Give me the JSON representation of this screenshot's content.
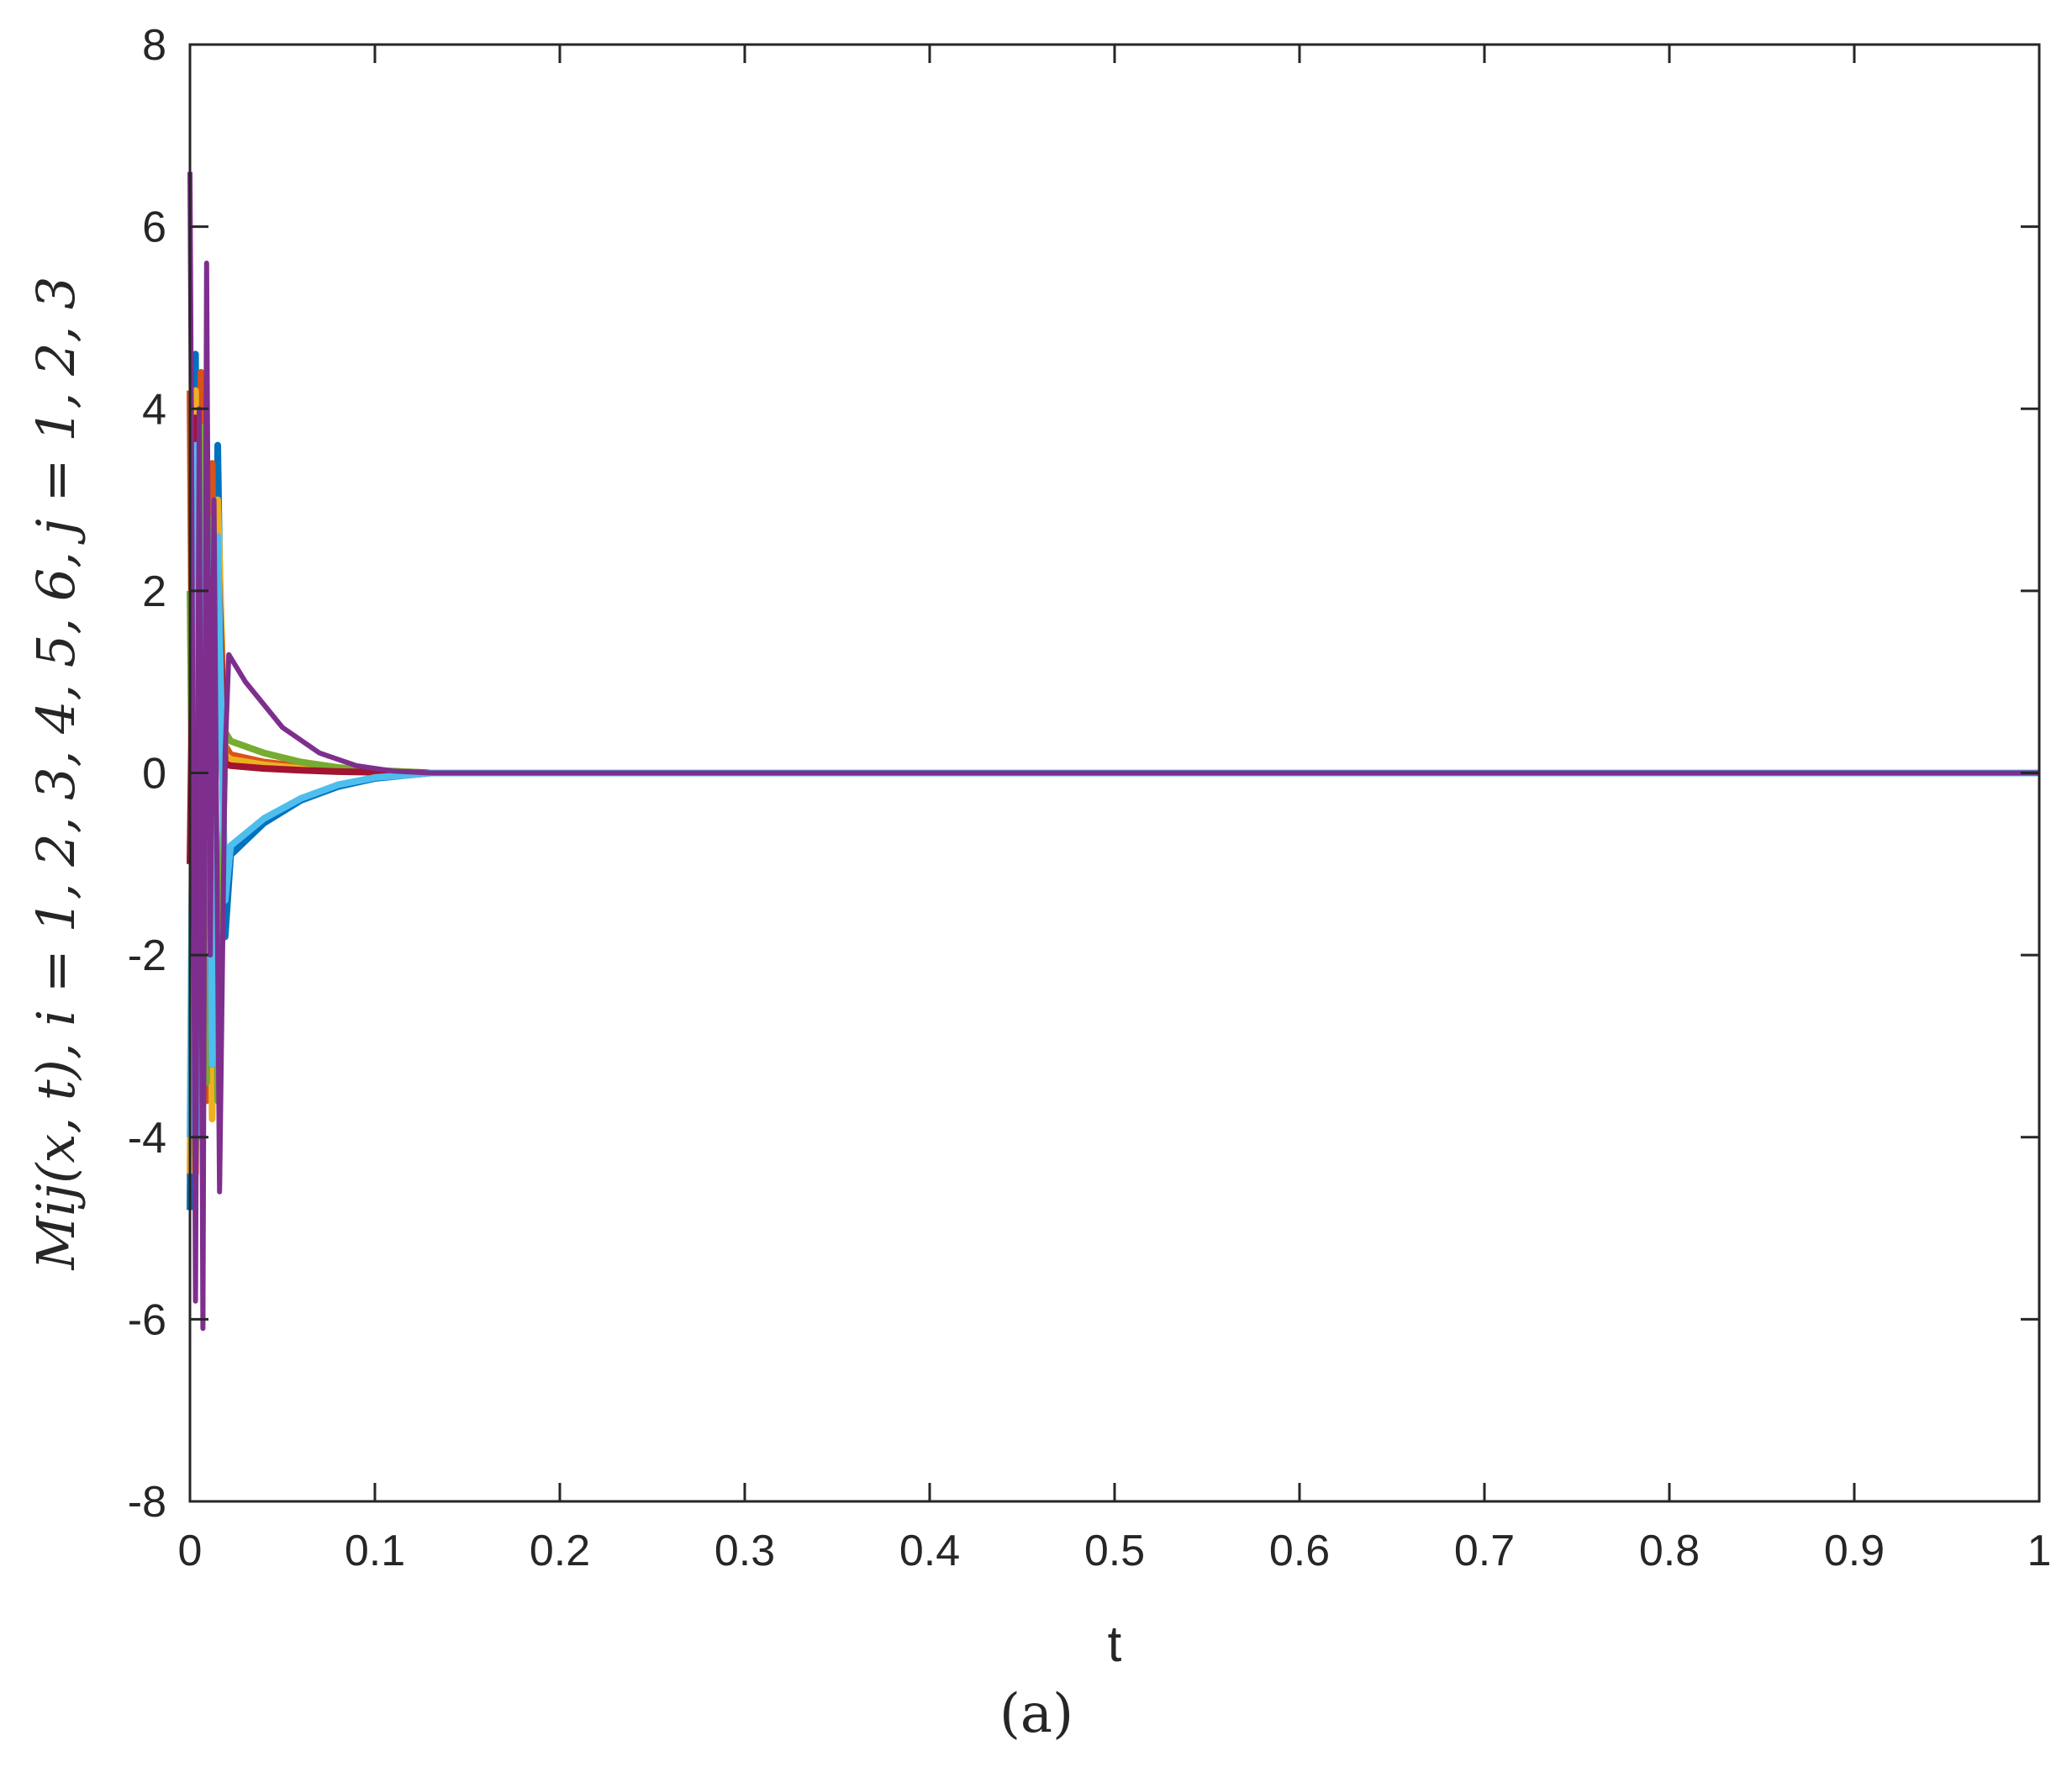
{
  "chart_data": {
    "type": "line",
    "title": "",
    "xlabel": "t",
    "ylabel": "M_{ij}(x,t), i = 1,2,3,4,5,6, j = 1,2,3",
    "ylabel_text": "Mij(x, t), i = 1, 2, 3, 4, 5, 6, j = 1, 2, 3",
    "caption": "(a)",
    "xlim": [
      0,
      1
    ],
    "ylim": [
      -8,
      8
    ],
    "xticks": [
      0,
      0.1,
      0.2,
      0.3,
      0.4,
      0.5,
      0.6,
      0.7,
      0.8,
      0.9,
      1
    ],
    "xtick_labels": [
      "0",
      "0.1",
      "0.2",
      "0.3",
      "0.4",
      "0.5",
      "0.6",
      "0.7",
      "0.8",
      "0.9",
      "1"
    ],
    "yticks": [
      -8,
      -6,
      -4,
      -2,
      0,
      2,
      4,
      6,
      8
    ],
    "ytick_labels": [
      "-8",
      "-6",
      "-4",
      "-2",
      "0",
      "2",
      "4",
      "6",
      "8"
    ],
    "grid": false,
    "legend": "none",
    "series": [
      {
        "color": "#0072BD",
        "values_t": [
          0,
          0.003,
          0.006,
          0.009,
          0.012,
          0.015,
          0.019,
          0.022,
          0.04,
          0.06,
          0.08,
          0.1,
          0.12,
          0.13,
          1
        ],
        "values_y": [
          -4.8,
          4.6,
          -3.8,
          3.2,
          -3.6,
          3.6,
          -1.8,
          -0.9,
          -0.55,
          -0.3,
          -0.15,
          -0.06,
          -0.02,
          0,
          0
        ]
      },
      {
        "color": "#D95319",
        "values_t": [
          0,
          0.003,
          0.006,
          0.009,
          0.012,
          0.015,
          0.019,
          0.022,
          0.04,
          0.06,
          0.08,
          0.1,
          0.12,
          0.13,
          1
        ],
        "values_y": [
          4.2,
          -4.4,
          4.4,
          -3.6,
          3.4,
          -3.2,
          0.3,
          0.2,
          0.12,
          0.07,
          0.04,
          0.02,
          0.01,
          0,
          0
        ]
      },
      {
        "color": "#EDB120",
        "values_t": [
          0,
          0.003,
          0.006,
          0.009,
          0.012,
          0.015,
          0.019,
          0.022,
          0.04,
          0.06,
          0.08,
          0.1,
          0.12,
          0.13,
          1
        ],
        "values_y": [
          -4.4,
          4.2,
          -3.6,
          3.0,
          -3.8,
          3.0,
          0.2,
          0.15,
          0.09,
          0.05,
          0.03,
          0.015,
          0.005,
          0,
          0
        ]
      },
      {
        "color": "#77AC30",
        "values_t": [
          0,
          0.003,
          0.006,
          0.009,
          0.012,
          0.015,
          0.019,
          0.022,
          0.04,
          0.06,
          0.08,
          0.1,
          0.12,
          0.13,
          1
        ],
        "values_y": [
          2.0,
          -4.2,
          3.8,
          -3.4,
          2.8,
          -3.6,
          0.45,
          0.35,
          0.22,
          0.12,
          0.06,
          0.03,
          0.01,
          0,
          0
        ]
      },
      {
        "color": "#A2142F",
        "values_t": [
          0,
          0.003,
          0.006,
          0.009,
          0.012,
          0.015,
          0.019,
          0.022,
          0.04,
          0.06,
          0.08,
          0.1,
          0.12,
          0.13,
          1
        ],
        "values_y": [
          -1.0,
          3.9,
          -4.0,
          2.6,
          -3.2,
          2.4,
          0.1,
          0.08,
          0.05,
          0.03,
          0.015,
          0.008,
          0.003,
          0,
          0
        ]
      },
      {
        "color": "#4DBEEE",
        "values_t": [
          0,
          0.003,
          0.006,
          0.009,
          0.012,
          0.015,
          0.019,
          0.022,
          0.04,
          0.06,
          0.08,
          0.1,
          0.12,
          0.13,
          1
        ],
        "values_y": [
          -4.0,
          3.6,
          -4.0,
          3.5,
          -3.2,
          2.6,
          -1.4,
          -0.8,
          -0.5,
          -0.28,
          -0.13,
          -0.05,
          -0.02,
          0,
          0
        ]
      },
      {
        "color": "#7E2F8E",
        "values_t": [
          0,
          0.001,
          0.003,
          0.005,
          0.007,
          0.009,
          0.011,
          0.013,
          0.016,
          0.019,
          0.021,
          0.03,
          0.05,
          0.07,
          0.09,
          0.11,
          0.13,
          1
        ],
        "values_y": [
          6.6,
          3.0,
          -5.8,
          4.0,
          -6.1,
          5.6,
          -2.0,
          3.0,
          -4.6,
          0.2,
          1.3,
          1.0,
          0.5,
          0.22,
          0.08,
          0.02,
          0,
          0
        ]
      }
    ]
  }
}
